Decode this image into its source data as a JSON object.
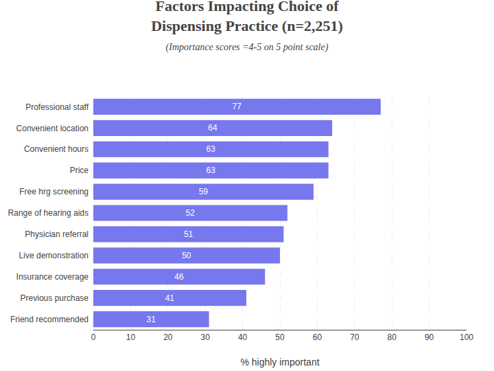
{
  "chart_data": {
    "type": "bar",
    "title": "Factors Impacting Choice of\nDispensing Practice (n=2,251)",
    "subtitle": "(Importance scores =4-5 on 5 point scale)",
    "categories": [
      "Professional staff",
      "Convenient location",
      "Convenient hours",
      "Price",
      "Free hrg screening",
      "Range of hearing aids",
      "Physician referral",
      "Live demonstration",
      "Insurance coverage",
      "Previous purchase",
      "Friend recommended"
    ],
    "values": [
      77,
      64,
      63,
      63,
      59,
      52,
      51,
      50,
      46,
      41,
      31
    ],
    "color": "#7777ee",
    "orientation": "horizontal",
    "xlabel": "% highly important",
    "xlim": [
      0,
      100
    ],
    "xticks": [
      0,
      10,
      20,
      30,
      40,
      50,
      60,
      70,
      80,
      90,
      100
    ],
    "grid": true,
    "data_labels": true
  }
}
